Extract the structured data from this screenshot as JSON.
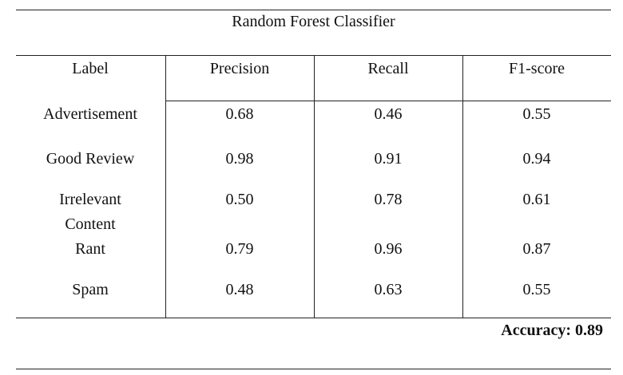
{
  "title": "Random Forest Classifier",
  "table": {
    "columns": [
      "Label",
      "Precision",
      "Recall",
      "F1-score"
    ],
    "rows": [
      [
        "Advertisement",
        "0.68",
        "0.46",
        "0.55"
      ],
      [
        "Good Review",
        "0.98",
        "0.91",
        "0.94"
      ],
      [
        "Irrelevant Content",
        "0.50",
        "0.78",
        "0.61"
      ],
      [
        "Rant",
        "0.79",
        "0.96",
        "0.87"
      ],
      [
        "Spam",
        "0.48",
        "0.63",
        "0.55"
      ]
    ]
  },
  "accuracy": "Accuracy: 0.89"
}
